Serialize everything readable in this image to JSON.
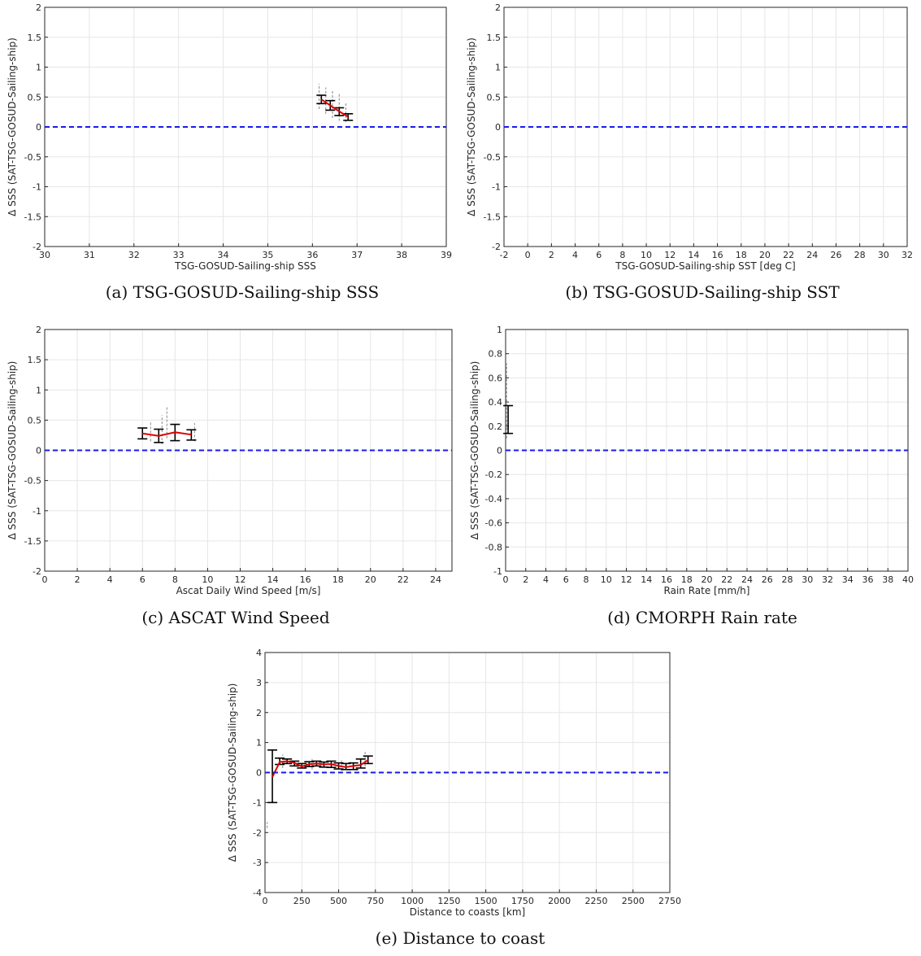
{
  "ylabel": "Δ SSS (SAT-TSG-GOSUD-Sailing-ship)",
  "colors": {
    "mean_line": "#dd0000",
    "zero_line": "#1a1aee",
    "error_bar": "#000000",
    "scatter": "#888888",
    "grid": "#e6e6e6",
    "axes": "#262626"
  },
  "chart_data": [
    {
      "id": "a",
      "type": "line",
      "caption": "(a) TSG-GOSUD-Sailing-ship SSS",
      "xlabel": "TSG-GOSUD-Sailing-ship SSS",
      "ylabel": "Δ SSS (SAT-TSG-GOSUD-Sailing-ship)",
      "xlim": [
        30,
        39
      ],
      "ylim": [
        -2,
        2
      ],
      "xticks": [
        "30",
        "31",
        "32",
        "33",
        "34",
        "35",
        "36",
        "37",
        "38",
        "39"
      ],
      "yticks": [
        "-2",
        "-1.5",
        "-1",
        "-0.5",
        "0",
        "0.5",
        "1",
        "1.5",
        "2"
      ],
      "grid": true,
      "reference_line_y": 0,
      "mean_series": {
        "x": [
          36.2,
          36.4,
          36.6,
          36.8
        ],
        "y": [
          0.46,
          0.36,
          0.26,
          0.17
        ]
      },
      "error_bars": [
        {
          "x": 36.2,
          "low": 0.39,
          "high": 0.53
        },
        {
          "x": 36.4,
          "low": 0.28,
          "high": 0.44
        },
        {
          "x": 36.6,
          "low": 0.19,
          "high": 0.32
        },
        {
          "x": 36.8,
          "low": 0.11,
          "high": 0.22
        }
      ],
      "scatter_range": [
        {
          "x": 36.15,
          "low": 0.3,
          "high": 0.72
        },
        {
          "x": 36.3,
          "low": 0.22,
          "high": 0.66
        },
        {
          "x": 36.45,
          "low": 0.15,
          "high": 0.62
        },
        {
          "x": 36.6,
          "low": 0.1,
          "high": 0.55
        },
        {
          "x": 36.75,
          "low": 0.08,
          "high": 0.4
        }
      ]
    },
    {
      "id": "b",
      "type": "line",
      "caption": "(b) TSG-GOSUD-Sailing-ship SST",
      "xlabel": "TSG-GOSUD-Sailing-ship SST [deg C]",
      "ylabel": "Δ SSS (SAT-TSG-GOSUD-Sailing-ship)",
      "xlim": [
        -2,
        32
      ],
      "ylim": [
        -2,
        2
      ],
      "xticks": [
        "-2",
        "0",
        "2",
        "4",
        "6",
        "8",
        "10",
        "12",
        "14",
        "16",
        "18",
        "20",
        "22",
        "24",
        "26",
        "28",
        "30",
        "32"
      ],
      "yticks": [
        "-2",
        "-1.5",
        "-1",
        "-0.5",
        "0",
        "0.5",
        "1",
        "1.5",
        "2"
      ],
      "grid": true,
      "reference_line_y": 0,
      "mean_series": {
        "x": [],
        "y": []
      },
      "error_bars": [],
      "scatter_range": []
    },
    {
      "id": "c",
      "type": "line",
      "caption": "(c) ASCAT Wind Speed",
      "xlabel": "Ascat Daily Wind Speed [m/s]",
      "ylabel": "Δ SSS (SAT-TSG-GOSUD-Sailing-ship)",
      "xlim": [
        0,
        25
      ],
      "ylim": [
        -2,
        2
      ],
      "xticks": [
        "0",
        "2",
        "4",
        "6",
        "8",
        "10",
        "12",
        "14",
        "16",
        "18",
        "20",
        "22",
        "24"
      ],
      "yticks": [
        "-2",
        "-1.5",
        "-1",
        "-0.5",
        "0",
        "0.5",
        "1",
        "1.5",
        "2"
      ],
      "grid": true,
      "reference_line_y": 0,
      "mean_series": {
        "x": [
          6.0,
          7.0,
          8.0,
          9.0
        ],
        "y": [
          0.28,
          0.24,
          0.3,
          0.26
        ]
      },
      "error_bars": [
        {
          "x": 6.0,
          "low": 0.19,
          "high": 0.37
        },
        {
          "x": 7.0,
          "low": 0.13,
          "high": 0.35
        },
        {
          "x": 8.0,
          "low": 0.16,
          "high": 0.43
        },
        {
          "x": 9.0,
          "low": 0.17,
          "high": 0.34
        }
      ],
      "scatter_range": [
        {
          "x": 6.5,
          "low": 0.15,
          "high": 0.48
        },
        {
          "x": 7.2,
          "low": 0.1,
          "high": 0.58
        },
        {
          "x": 7.5,
          "low": 0.2,
          "high": 0.72
        },
        {
          "x": 9.2,
          "low": 0.15,
          "high": 0.45
        }
      ]
    },
    {
      "id": "d",
      "type": "line",
      "caption": "(d) CMORPH Rain rate",
      "xlabel": "Rain Rate [mm/h]",
      "ylabel": "Δ SSS (SAT-TSG-GOSUD-Sailing-ship)",
      "xlim": [
        0,
        40
      ],
      "ylim": [
        -1,
        1
      ],
      "xticks": [
        "0",
        "2",
        "4",
        "6",
        "8",
        "10",
        "12",
        "14",
        "16",
        "18",
        "20",
        "22",
        "24",
        "26",
        "28",
        "30",
        "32",
        "34",
        "36",
        "38",
        "40"
      ],
      "yticks": [
        "-1",
        "-0.8",
        "-0.6",
        "-0.4",
        "-0.2",
        "0",
        "0.2",
        "0.4",
        "0.6",
        "0.8",
        "1"
      ],
      "grid": true,
      "reference_line_y": 0,
      "mean_series": {
        "x": [],
        "y": []
      },
      "error_bars": [
        {
          "x": 0.25,
          "low": 0.14,
          "high": 0.37
        }
      ],
      "scatter_range": [
        {
          "x": 0.1,
          "low": 0.1,
          "high": 0.72
        }
      ]
    },
    {
      "id": "e",
      "type": "line",
      "caption": "(e) Distance to coast",
      "xlabel": "Distance to coasts [km]",
      "ylabel": "Δ SSS (SAT-TSG-GOSUD-Sailing-ship)",
      "xlim": [
        0,
        2750
      ],
      "ylim": [
        -4,
        4
      ],
      "xticks": [
        "0",
        "250",
        "500",
        "750",
        "1000",
        "1250",
        "1500",
        "1750",
        "2000",
        "2250",
        "2500",
        "2750"
      ],
      "yticks": [
        "-4",
        "-3",
        "-2",
        "-1",
        "0",
        "1",
        "2",
        "3",
        "4"
      ],
      "grid": true,
      "reference_line_y": 0,
      "mean_series": {
        "x": [
          50,
          100,
          150,
          200,
          250,
          300,
          350,
          400,
          450,
          500,
          550,
          600,
          650,
          700
        ],
        "y": [
          -0.15,
          0.35,
          0.38,
          0.32,
          0.2,
          0.28,
          0.3,
          0.27,
          0.28,
          0.22,
          0.18,
          0.22,
          0.25,
          0.42
        ]
      },
      "error_bars": [
        {
          "x": 50,
          "low": -1.0,
          "high": 0.75
        },
        {
          "x": 100,
          "low": 0.27,
          "high": 0.48
        },
        {
          "x": 150,
          "low": 0.3,
          "high": 0.45
        },
        {
          "x": 200,
          "low": 0.22,
          "high": 0.38
        },
        {
          "x": 250,
          "low": 0.15,
          "high": 0.3
        },
        {
          "x": 300,
          "low": 0.2,
          "high": 0.36
        },
        {
          "x": 350,
          "low": 0.22,
          "high": 0.38
        },
        {
          "x": 400,
          "low": 0.18,
          "high": 0.35
        },
        {
          "x": 450,
          "low": 0.17,
          "high": 0.38
        },
        {
          "x": 500,
          "low": 0.12,
          "high": 0.32
        },
        {
          "x": 550,
          "low": 0.1,
          "high": 0.3
        },
        {
          "x": 600,
          "low": 0.1,
          "high": 0.32
        },
        {
          "x": 650,
          "low": 0.15,
          "high": 0.45
        },
        {
          "x": 700,
          "low": 0.3,
          "high": 0.55
        }
      ],
      "scatter_range": [
        {
          "x": 15,
          "low": -1.85,
          "high": -1.65
        },
        {
          "x": 120,
          "low": 0.15,
          "high": 0.6
        },
        {
          "x": 320,
          "low": 0.1,
          "high": 0.5
        },
        {
          "x": 520,
          "low": 0.05,
          "high": 0.45
        },
        {
          "x": 680,
          "low": 0.2,
          "high": 0.72
        }
      ]
    }
  ]
}
